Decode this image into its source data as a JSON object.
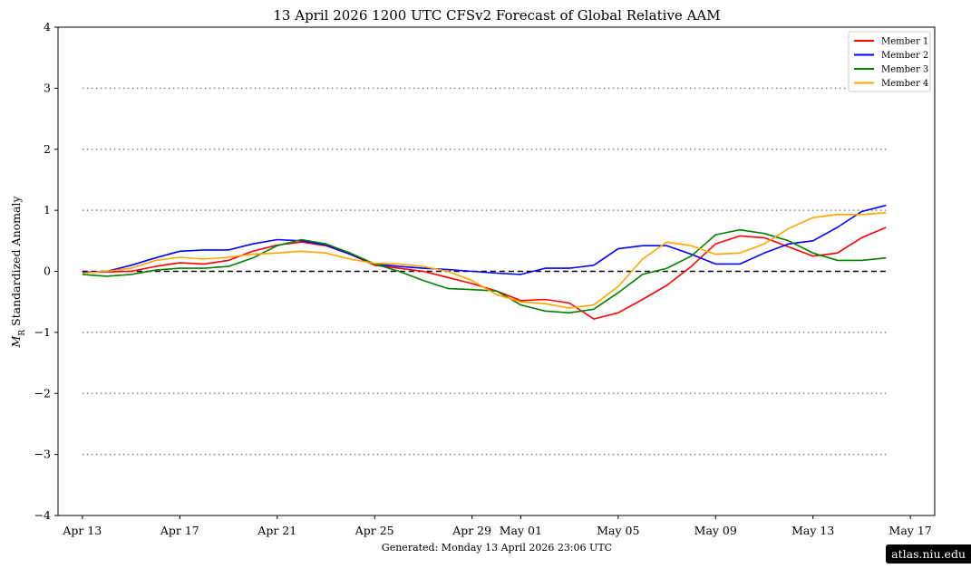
{
  "chart_data": {
    "type": "line",
    "title": "13  April  2026 1200 UTC   CFSv2 Forecast of Global Relative AAM",
    "ylabel_symbol": "M",
    "ylabel_subscript": "R",
    "ylabel_text": "Standardized Anomaly",
    "xlabel": "",
    "ylim": [
      -4,
      4
    ],
    "yticks": [
      -4,
      -3,
      -2,
      -1,
      0,
      1,
      2,
      3,
      4
    ],
    "ytick_labels": [
      "−4",
      "−3",
      "−2",
      "−1",
      "0",
      "1",
      "2",
      "3",
      "4"
    ],
    "xlim": [
      "2026-04-12",
      "2026-05-18"
    ],
    "xticks": [
      "2026-04-13",
      "2026-04-17",
      "2026-04-21",
      "2026-04-25",
      "2026-04-29",
      "2026-05-01",
      "2026-05-05",
      "2026-05-09",
      "2026-05-13",
      "2026-05-17"
    ],
    "xtick_labels": [
      "Apr 13",
      "Apr 17",
      "Apr 21",
      "Apr 25",
      "Apr 29",
      "May 01",
      "May 05",
      "May 09",
      "May 13",
      "May 17"
    ],
    "reference_lines": [
      {
        "y": 0,
        "style": "dashed",
        "color": "#000000"
      },
      {
        "y": 1,
        "style": "dotted",
        "color": "#808080"
      },
      {
        "y": 2,
        "style": "dotted",
        "color": "#808080"
      },
      {
        "y": 3,
        "style": "dotted",
        "color": "#808080"
      },
      {
        "y": -1,
        "style": "dotted",
        "color": "#808080"
      },
      {
        "y": -2,
        "style": "dotted",
        "color": "#808080"
      },
      {
        "y": -3,
        "style": "dotted",
        "color": "#808080"
      }
    ],
    "legend_position": "top-right",
    "x": [
      "2026-04-13",
      "2026-04-14",
      "2026-04-15",
      "2026-04-16",
      "2026-04-17",
      "2026-04-18",
      "2026-04-19",
      "2026-04-20",
      "2026-04-21",
      "2026-04-22",
      "2026-04-23",
      "2026-04-24",
      "2026-04-25",
      "2026-04-26",
      "2026-04-27",
      "2026-04-28",
      "2026-04-29",
      "2026-04-30",
      "2026-05-01",
      "2026-05-02",
      "2026-05-03",
      "2026-05-04",
      "2026-05-05",
      "2026-05-06",
      "2026-05-07",
      "2026-05-08",
      "2026-05-09",
      "2026-05-10",
      "2026-05-11",
      "2026-05-12",
      "2026-05-13",
      "2026-05-14",
      "2026-05-15",
      "2026-05-16"
    ],
    "series": [
      {
        "name": "Member 1",
        "color": "#ff0000",
        "values": [
          -0.02,
          -0.01,
          0.0,
          0.08,
          0.14,
          0.12,
          0.18,
          0.33,
          0.43,
          0.48,
          0.42,
          0.28,
          0.1,
          0.05,
          0.0,
          -0.1,
          -0.2,
          -0.32,
          -0.48,
          -0.46,
          -0.52,
          -0.78,
          -0.68,
          -0.46,
          -0.23,
          0.08,
          0.45,
          0.58,
          0.55,
          0.4,
          0.25,
          0.3,
          0.55,
          0.72
        ]
      },
      {
        "name": "Member 2",
        "color": "#0000ff",
        "values": [
          -0.02,
          0.0,
          0.1,
          0.22,
          0.33,
          0.35,
          0.35,
          0.45,
          0.52,
          0.5,
          0.43,
          0.28,
          0.12,
          0.08,
          0.05,
          0.03,
          0.0,
          -0.03,
          -0.05,
          0.05,
          0.05,
          0.1,
          0.37,
          0.42,
          0.42,
          0.28,
          0.12,
          0.12,
          0.3,
          0.45,
          0.5,
          0.72,
          0.98,
          1.08
        ]
      },
      {
        "name": "Member 3",
        "color": "#008000",
        "values": [
          -0.05,
          -0.08,
          -0.05,
          0.02,
          0.05,
          0.05,
          0.08,
          0.22,
          0.42,
          0.52,
          0.45,
          0.3,
          0.12,
          0.0,
          -0.15,
          -0.28,
          -0.3,
          -0.32,
          -0.55,
          -0.65,
          -0.68,
          -0.62,
          -0.35,
          -0.05,
          0.05,
          0.25,
          0.6,
          0.68,
          0.62,
          0.5,
          0.3,
          0.18,
          0.18,
          0.22
        ]
      },
      {
        "name": "Member 4",
        "color": "#ffa500",
        "values": [
          -0.03,
          0.0,
          0.05,
          0.18,
          0.23,
          0.2,
          0.23,
          0.28,
          0.3,
          0.33,
          0.3,
          0.2,
          0.13,
          0.12,
          0.08,
          0.0,
          -0.15,
          -0.38,
          -0.5,
          -0.53,
          -0.6,
          -0.55,
          -0.25,
          0.2,
          0.48,
          0.42,
          0.28,
          0.3,
          0.45,
          0.7,
          0.88,
          0.93,
          0.93,
          0.96
        ]
      }
    ],
    "footer": "Generated: Monday  13  April  2026  23:06 UTC"
  },
  "watermark": "atlas.niu.edu"
}
